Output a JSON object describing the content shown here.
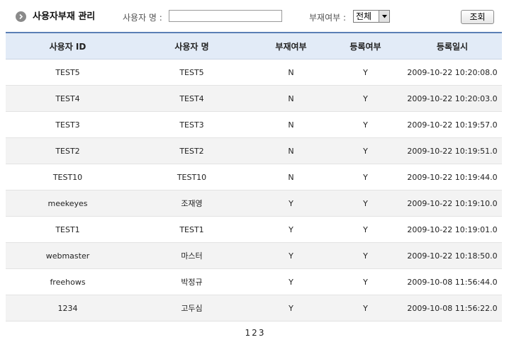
{
  "page": {
    "title": "사용자부재 관리",
    "title_icon": "chevron-right-circle-icon"
  },
  "search": {
    "name_label": "사용자 명 :",
    "name_value": "",
    "absence_label": "부재여부 :",
    "absence_selected": "전체",
    "submit_label": "조회"
  },
  "table": {
    "headers": [
      "사용자 ID",
      "사용자 명",
      "부재여부",
      "등록여부",
      "등록일시"
    ],
    "rows": [
      [
        "TEST5",
        "TEST5",
        "N",
        "Y",
        "2009-10-22 10:20:08.0"
      ],
      [
        "TEST4",
        "TEST4",
        "N",
        "Y",
        "2009-10-22 10:20:03.0"
      ],
      [
        "TEST3",
        "TEST3",
        "N",
        "Y",
        "2009-10-22 10:19:57.0"
      ],
      [
        "TEST2",
        "TEST2",
        "N",
        "Y",
        "2009-10-22 10:19:51.0"
      ],
      [
        "TEST10",
        "TEST10",
        "N",
        "Y",
        "2009-10-22 10:19:44.0"
      ],
      [
        "meekeyes",
        "조재영",
        "Y",
        "Y",
        "2009-10-22 10:19:10.0"
      ],
      [
        "TEST1",
        "TEST1",
        "Y",
        "Y",
        "2009-10-22 10:19:01.0"
      ],
      [
        "webmaster",
        "마스터",
        "Y",
        "Y",
        "2009-10-22 10:18:50.0"
      ],
      [
        "freehows",
        "박정규",
        "Y",
        "Y",
        "2009-10-08 11:56:44.0"
      ],
      [
        "1234",
        "고두심",
        "Y",
        "Y",
        "2009-10-08 11:56:22.0"
      ]
    ]
  },
  "pagination": {
    "pages": [
      "1",
      "2",
      "3"
    ]
  },
  "colors": {
    "header_bg": "#e2ebf7",
    "header_border": "#5b7fb5",
    "row_alt_bg": "#f3f3f3"
  }
}
